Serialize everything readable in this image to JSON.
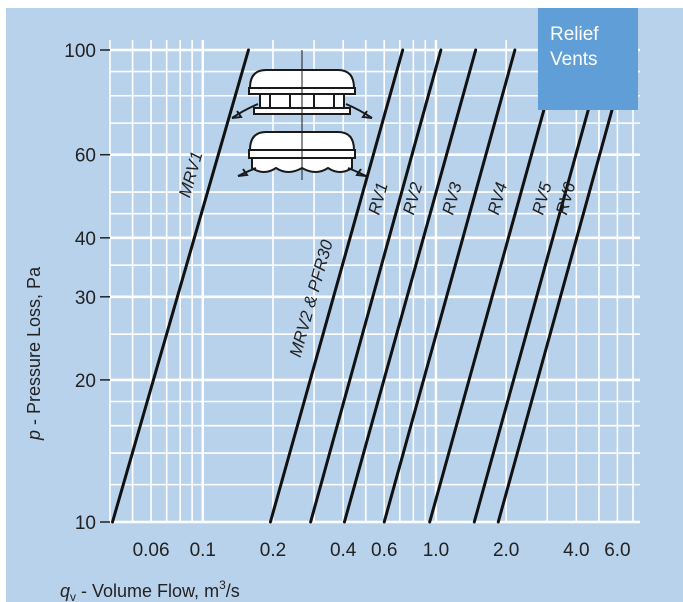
{
  "badge": {
    "text": "Relief\nVents",
    "color": "#5f9ed6"
  },
  "chart_data": {
    "type": "line",
    "x_scale": "log",
    "y_scale": "log",
    "xlabel_parts": {
      "italic": "q",
      "sub": "v",
      "rest": " - Volume Flow, m",
      "sup": "3",
      "tail": "/s"
    },
    "ylabel_parts": {
      "italic": "p",
      "rest": " - Pressure Loss, Pa"
    },
    "x_ticks": [
      {
        "label": "0.06",
        "value": 0.06
      },
      {
        "label": "0.1",
        "value": 0.1
      },
      {
        "label": "0.2",
        "value": 0.2
      },
      {
        "label": "0.4",
        "value": 0.4
      },
      {
        "label": "0.6",
        "value": 0.6
      },
      {
        "label": "1.0",
        "value": 1.0
      },
      {
        "label": "2.0",
        "value": 2.0
      },
      {
        "label": "4.0",
        "value": 4.0
      },
      {
        "label": "6.0",
        "value": 6.0
      }
    ],
    "y_ticks": [
      {
        "label": "10",
        "value": 10
      },
      {
        "label": "20",
        "value": 20
      },
      {
        "label": "30",
        "value": 30
      },
      {
        "label": "40",
        "value": 40
      },
      {
        "label": "60",
        "value": 60
      },
      {
        "label": "100",
        "value": 100
      }
    ],
    "xlim": [
      0.04,
      7.5
    ],
    "ylim": [
      10,
      105
    ],
    "grid": true,
    "series": [
      {
        "name": "MRV1",
        "x": [
          0.041,
          0.157
        ],
        "y": [
          10,
          100
        ]
      },
      {
        "name": "MRV2 & PFR30",
        "x": [
          0.195,
          0.72
        ],
        "y": [
          10,
          100
        ]
      },
      {
        "name": "RV1",
        "x": [
          0.29,
          1.05
        ],
        "y": [
          10,
          100
        ]
      },
      {
        "name": "RV2",
        "x": [
          0.405,
          1.48
        ],
        "y": [
          10,
          100
        ]
      },
      {
        "name": "RV3",
        "x": [
          0.6,
          2.18
        ],
        "y": [
          10,
          100
        ]
      },
      {
        "name": "RV4",
        "x": [
          0.94,
          3.42
        ],
        "y": [
          10,
          100
        ]
      },
      {
        "name": "RV5",
        "x": [
          1.46,
          5.3
        ],
        "y": [
          10,
          100
        ]
      },
      {
        "name": "RV6",
        "x": [
          1.85,
          6.7
        ],
        "y": [
          10,
          100
        ]
      }
    ]
  }
}
